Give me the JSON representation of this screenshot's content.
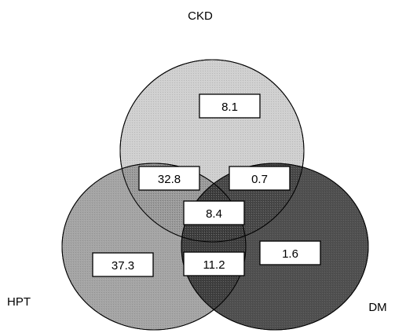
{
  "sets": {
    "ckd": {
      "label": "CKD",
      "color": "#cccccc"
    },
    "hpt": {
      "label": "HPT",
      "color": "#8c8c8c"
    },
    "dm": {
      "label": "DM",
      "color": "#2a2a2a"
    }
  },
  "regions": {
    "ckd_only": "8.1",
    "ckd_hpt": "32.8",
    "ckd_dm": "0.7",
    "all_three": "8.4",
    "hpt_only": "37.3",
    "hpt_dm": "11.2",
    "dm_only": "1.6"
  }
}
